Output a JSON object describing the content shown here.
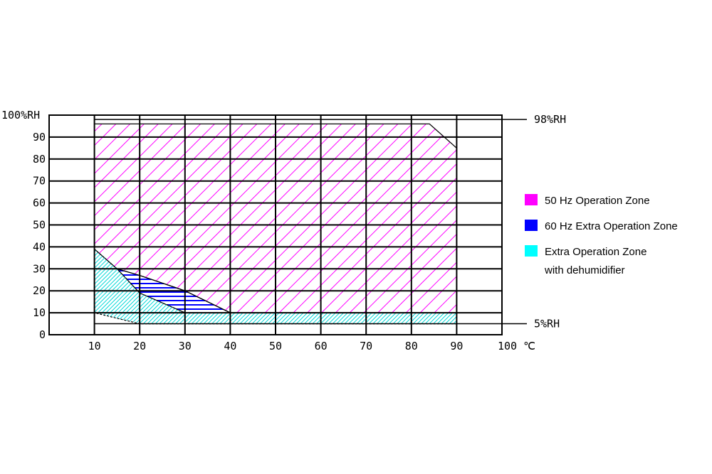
{
  "chart_data": {
    "type": "area",
    "x_ticks": [
      "10",
      "20",
      "30",
      "40",
      "50",
      "60",
      "70",
      "80",
      "90",
      "100"
    ],
    "x_unit": "℃",
    "y_ticks": [
      "0",
      "10",
      "20",
      "30",
      "40",
      "50",
      "60",
      "70",
      "80",
      "90",
      "100"
    ],
    "y_unit": "%RH",
    "xlim": [
      0,
      100
    ],
    "ylim": [
      0,
      100
    ],
    "grid": true,
    "legend_position": "right",
    "reference_lines": [
      {
        "y": 98,
        "label": "98%RH"
      },
      {
        "y": 5,
        "label": "5%RH"
      }
    ],
    "series": [
      {
        "name": "50 Hz Operation Zone",
        "color": "#ff00ff",
        "polygon": [
          [
            10,
            96
          ],
          [
            84,
            96
          ],
          [
            90,
            85
          ],
          [
            90,
            10
          ],
          [
            40,
            10
          ],
          [
            30,
            20
          ],
          [
            20,
            27
          ],
          [
            15,
            30
          ],
          [
            10,
            39
          ]
        ]
      },
      {
        "name": "60 Hz Extra Operation Zone",
        "color": "#0000ff",
        "polygon": [
          [
            15,
            30
          ],
          [
            20,
            27
          ],
          [
            30,
            20
          ],
          [
            40,
            10
          ],
          [
            30,
            10
          ],
          [
            20,
            19
          ]
        ]
      },
      {
        "name": "Extra Operation Zone",
        "name_line2": "with dehumidifier",
        "color": "#00ffff",
        "polygon": [
          [
            10,
            39
          ],
          [
            15,
            30
          ],
          [
            20,
            19
          ],
          [
            30,
            10
          ],
          [
            90,
            10
          ],
          [
            90,
            5
          ],
          [
            20,
            5
          ],
          [
            10,
            10
          ]
        ]
      }
    ]
  }
}
